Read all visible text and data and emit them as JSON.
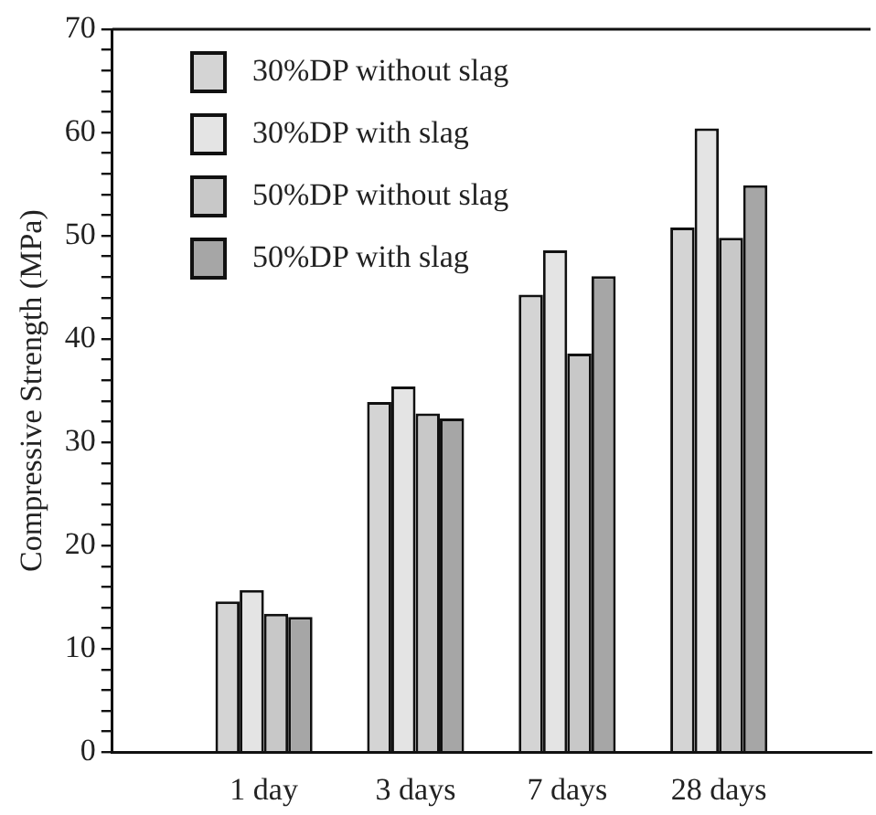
{
  "chart_data": {
    "type": "bar",
    "ylabel": "Compressive Strength (MPa)",
    "categories": [
      null,
      "1 day",
      "3 days",
      "7 days",
      "28 days",
      null
    ],
    "series": [
      {
        "name": "30%DP without slag",
        "color": "#d4d4d4",
        "values": [
          null,
          14.6,
          33.9,
          44.3,
          50.8,
          null
        ]
      },
      {
        "name": "30%DP with slag",
        "color": "#e4e4e4",
        "values": [
          null,
          15.7,
          35.4,
          48.6,
          60.4,
          null
        ]
      },
      {
        "name": "50%DP without slag",
        "color": "#c8c8c8",
        "values": [
          null,
          13.4,
          32.8,
          38.6,
          49.8,
          null
        ]
      },
      {
        "name": "50%DP with slag",
        "color": "#a6a6a6",
        "values": [
          null,
          13.1,
          32.3,
          46.1,
          54.9,
          null
        ]
      }
    ],
    "ylim": [
      0,
      70
    ],
    "yticks": [
      0,
      {
        "value": 2,
        "label": null
      },
      {
        "value": 4,
        "label": null
      },
      {
        "value": 6,
        "label": null
      },
      {
        "value": 8,
        "label": null
      },
      10,
      {
        "value": 12,
        "label": null
      },
      {
        "value": 14,
        "label": null
      },
      {
        "value": 16,
        "label": null
      },
      {
        "value": 18,
        "label": null
      },
      20,
      {
        "value": 22,
        "label": null
      },
      {
        "value": 24,
        "label": null
      },
      {
        "value": 26,
        "label": null
      },
      {
        "value": 28,
        "label": null
      },
      30,
      {
        "value": 32,
        "label": null
      },
      {
        "value": 34,
        "label": null
      },
      {
        "value": 36,
        "label": null
      },
      {
        "value": 38,
        "label": null
      },
      40,
      {
        "value": 42,
        "label": null
      },
      {
        "value": 44,
        "label": null
      },
      {
        "value": 46,
        "label": null
      },
      {
        "value": 48,
        "label": null
      },
      50,
      {
        "value": 52,
        "label": null
      },
      {
        "value": 54,
        "label": null
      },
      {
        "value": 56,
        "label": null
      },
      {
        "value": 58,
        "label": null
      },
      60,
      {
        "value": 62,
        "label": null
      },
      {
        "value": 64,
        "label": null
      },
      {
        "value": 66,
        "label": null
      },
      {
        "value": 68,
        "label": null
      },
      70
    ],
    "grid": false,
    "legend": "top left"
  }
}
